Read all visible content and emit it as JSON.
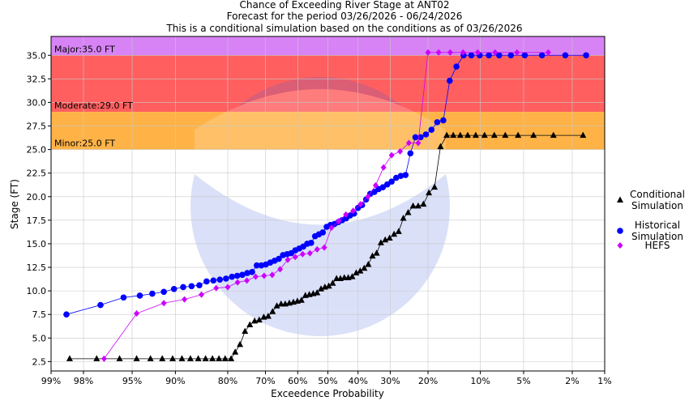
{
  "chart_data": {
    "type": "scatter",
    "title": [
      "Chance of Exceeding River Stage at ANT02",
      "Forecast for the period 03/26/2026 - 06/24/2026",
      "This is a conditional simulation based on the conditions as of 03/26/2026"
    ],
    "xlabel": "Exceedence Probability",
    "ylabel": "Stage (FT)",
    "x_scale": "normal-probability (percent exceedence, reversed)",
    "xlim": [
      99,
      1
    ],
    "ylim": [
      1.5,
      37
    ],
    "xticks": [
      99,
      98,
      95,
      90,
      80,
      70,
      60,
      50,
      40,
      30,
      20,
      10,
      5,
      2,
      1
    ],
    "xtick_labels": [
      "99%",
      "98%",
      "95%",
      "90%",
      "80%",
      "70%",
      "60%",
      "50%",
      "40%",
      "30%",
      "20%",
      "10%",
      "5%",
      "2%",
      "1%"
    ],
    "yticks": [
      2.5,
      5.0,
      7.5,
      10.0,
      12.5,
      15.0,
      17.5,
      20.0,
      22.5,
      25.0,
      27.5,
      30.0,
      32.5,
      35.0
    ],
    "ytick_labels": [
      "2.5",
      "5.0",
      "7.5",
      "10.0",
      "12.5",
      "15.0",
      "17.5",
      "20.0",
      "22.5",
      "25.0",
      "27.5",
      "30.0",
      "32.5",
      "35.0"
    ],
    "flood_categories": [
      {
        "name": "Major",
        "label": "Major:35.0 FT",
        "from": 35.0,
        "to": 37.0,
        "color": "#d783f5"
      },
      {
        "name": "Major band",
        "label": "",
        "from": 29.0,
        "to": 35.0,
        "color": "#ff5f5f"
      },
      {
        "name": "Moderate",
        "label": "Moderate:29.0 FT",
        "from": 25.0,
        "to": 29.0,
        "color": "#ffb347"
      },
      {
        "name": "Minor",
        "label": "Minor:25.0 FT",
        "from": 25.0,
        "to": 25.0,
        "color": "#ffb347"
      }
    ],
    "flood_labels": [
      {
        "text": "Major:35.0 FT",
        "stage": 35.0
      },
      {
        "text": "Moderate:29.0 FT",
        "stage": 29.0
      },
      {
        "text": "Minor:25.0 FT",
        "stage": 25.0
      }
    ],
    "series": [
      {
        "name": "Conditional Simulation",
        "legend": [
          "Conditional",
          "Simulation"
        ],
        "color": "#000000",
        "marker": "triangle",
        "x": [
          98.5,
          97.4,
          96.0,
          94.6,
          93.2,
          91.8,
          90.4,
          89.0,
          87.6,
          86.2,
          84.8,
          83.4,
          82.0,
          80.6,
          79.2,
          78.2,
          77.0,
          75.7,
          74.4,
          73.1,
          71.8,
          70.5,
          69.2,
          67.9,
          66.6,
          65.3,
          64.0,
          62.7,
          61.4,
          60.1,
          58.8,
          57.5,
          56.2,
          54.9,
          53.6,
          52.3,
          51.0,
          49.7,
          48.4,
          47.1,
          45.8,
          44.5,
          43.2,
          41.9,
          40.6,
          39.3,
          38.0,
          36.7,
          35.4,
          34.1,
          32.8,
          31.5,
          30.2,
          28.9,
          27.6,
          26.3,
          25.0,
          23.7,
          22.4,
          21.1,
          19.8,
          18.5,
          17.2,
          15.9,
          14.6,
          13.3,
          12.0,
          10.7,
          9.4,
          8.1,
          6.8,
          5.5,
          4.2,
          2.9,
          1.6
        ],
        "y": [
          2.8,
          2.8,
          2.8,
          2.8,
          2.8,
          2.8,
          2.8,
          2.8,
          2.8,
          2.8,
          2.8,
          2.8,
          2.8,
          2.8,
          2.8,
          3.5,
          4.3,
          5.7,
          6.4,
          6.8,
          6.9,
          7.2,
          7.3,
          7.8,
          8.4,
          8.6,
          8.6,
          8.7,
          8.8,
          8.9,
          9.0,
          9.5,
          9.6,
          9.7,
          9.8,
          10.2,
          10.4,
          10.5,
          10.8,
          11.3,
          11.3,
          11.4,
          11.4,
          11.5,
          11.9,
          12.1,
          12.4,
          12.8,
          13.7,
          14.0,
          15.1,
          15.4,
          15.6,
          16.0,
          16.3,
          17.7,
          18.3,
          19.0,
          19.0,
          19.2,
          20.4,
          21.0,
          25.3,
          26.5,
          26.5,
          26.5,
          26.5,
          26.5,
          26.5,
          26.5,
          26.5,
          26.5,
          26.5,
          26.5,
          26.5
        ]
      },
      {
        "name": "Historical Simulation",
        "legend": [
          "Historical",
          "Simulation"
        ],
        "color": "#0000ff",
        "marker": "circle",
        "x": [
          98.6,
          97.2,
          95.7,
          94.3,
          93.0,
          91.6,
          90.2,
          88.8,
          87.4,
          86.0,
          84.6,
          83.2,
          81.8,
          80.4,
          79.0,
          77.7,
          76.4,
          75.1,
          73.8,
          72.5,
          71.2,
          69.9,
          68.6,
          67.3,
          66.0,
          64.7,
          63.4,
          62.1,
          60.8,
          59.5,
          58.2,
          56.9,
          55.6,
          54.3,
          53.0,
          51.7,
          50.4,
          49.1,
          47.8,
          46.5,
          45.2,
          43.9,
          42.6,
          41.3,
          40.0,
          38.7,
          37.4,
          36.1,
          34.8,
          33.5,
          32.2,
          30.9,
          29.6,
          28.3,
          27.0,
          25.7,
          24.4,
          23.1,
          21.8,
          20.5,
          19.2,
          17.9,
          16.6,
          15.3,
          14.0,
          12.7,
          11.4,
          10.1,
          8.8,
          7.5,
          6.2,
          4.9,
          3.6,
          2.3,
          1.5
        ],
        "y": [
          7.5,
          8.5,
          9.3,
          9.5,
          9.7,
          9.9,
          10.2,
          10.4,
          10.5,
          10.6,
          11.0,
          11.1,
          11.2,
          11.3,
          11.5,
          11.6,
          11.7,
          11.9,
          12.0,
          12.7,
          12.7,
          12.8,
          13.0,
          13.2,
          13.4,
          13.8,
          13.9,
          14.0,
          14.3,
          14.5,
          14.7,
          15.0,
          15.1,
          15.8,
          16.0,
          16.2,
          16.8,
          17.0,
          17.1,
          17.3,
          17.5,
          17.7,
          18.0,
          18.2,
          18.8,
          19.1,
          19.7,
          20.3,
          20.5,
          20.8,
          21.0,
          21.3,
          21.6,
          22.0,
          22.2,
          22.3,
          24.6,
          26.3,
          26.3,
          26.6,
          27.1,
          27.9,
          28.1,
          32.3,
          33.8,
          35.0,
          35.0,
          35.0,
          35.0,
          35.0,
          35.0,
          35.0,
          35.0,
          35.0,
          35.0
        ]
      },
      {
        "name": "HEFS",
        "legend": [
          "HEFS"
        ],
        "color": "#cc00ff",
        "marker": "diamond",
        "x": [
          97.0,
          94.6,
          91.6,
          88.6,
          85.6,
          82.6,
          80.0,
          77.6,
          75.2,
          72.8,
          70.4,
          68.0,
          65.6,
          63.2,
          60.8,
          58.4,
          56.0,
          53.6,
          51.2,
          48.8,
          46.4,
          44.0,
          41.6,
          39.2,
          36.8,
          34.4,
          32.0,
          29.6,
          27.2,
          24.8,
          22.4,
          20.0,
          17.6,
          15.2,
          12.8,
          10.4,
          8.0,
          5.6,
          3.2
        ],
        "y": [
          2.8,
          7.6,
          8.7,
          9.1,
          9.6,
          10.3,
          10.4,
          10.9,
          11.1,
          11.5,
          11.6,
          11.7,
          12.3,
          13.3,
          13.6,
          13.9,
          14.0,
          14.4,
          14.6,
          16.7,
          17.4,
          18.1,
          18.5,
          19.2,
          20.0,
          21.2,
          23.1,
          24.4,
          24.8,
          25.7,
          25.7,
          35.3,
          35.3,
          35.3,
          35.3,
          35.3,
          35.3,
          35.3,
          35.3
        ]
      }
    ]
  }
}
